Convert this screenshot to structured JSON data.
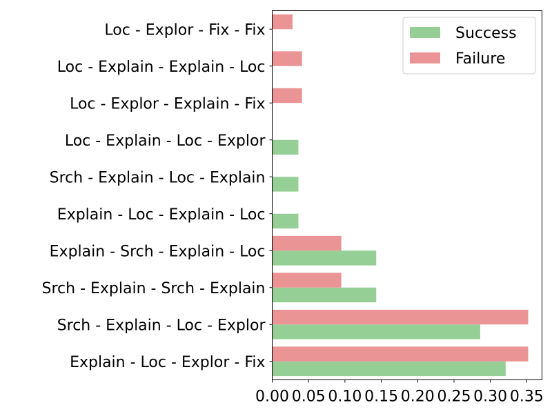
{
  "chart_data": {
    "type": "bar",
    "orientation": "horizontal",
    "categories": [
      "Explain - Loc - Explor - Fix",
      "Srch - Explain - Loc - Explor",
      "Srch - Explain - Srch - Explain",
      "Explain - Srch - Explain - Loc",
      "Explain - Loc - Explain - Loc",
      "Srch - Explain - Loc - Explain",
      "Loc - Explain - Loc - Explor",
      "Loc - Explor - Explain - Fix",
      "Loc - Explain - Explain - Loc",
      "Loc - Explor - Fix - Fix"
    ],
    "series": [
      {
        "name": "Success",
        "color": "#95cf95",
        "values": [
          0.321,
          0.286,
          0.143,
          0.143,
          0.036,
          0.036,
          0.036,
          0,
          0,
          0
        ]
      },
      {
        "name": "Failure",
        "color": "#eb9495",
        "values": [
          0.352,
          0.352,
          0.095,
          0.095,
          0,
          0,
          0,
          0.041,
          0.041,
          0.028
        ]
      }
    ],
    "xlim": [
      0,
      0.371
    ],
    "xticks": [
      "0.00",
      "0.05",
      "0.10",
      "0.15",
      "0.20",
      "0.25",
      "0.30",
      "0.35"
    ],
    "legend_position": "top-right",
    "grid": false
  }
}
